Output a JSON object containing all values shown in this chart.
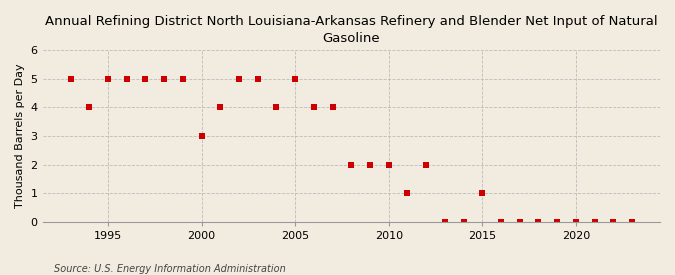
{
  "title": "Annual Refining District North Louisiana-Arkansas Refinery and Blender Net Input of Natural\nGasoline",
  "ylabel": "Thousand Barrels per Day",
  "source": "Source: U.S. Energy Information Administration",
  "background_color": "#f2ece0",
  "years": [
    1993,
    1994,
    1995,
    1996,
    1997,
    1998,
    1999,
    2000,
    2001,
    2002,
    2003,
    2004,
    2005,
    2006,
    2007,
    2008,
    2009,
    2010,
    2011,
    2012,
    2013,
    2014,
    2015,
    2016,
    2017,
    2018,
    2019,
    2020,
    2021,
    2022,
    2023
  ],
  "values": [
    5,
    4,
    5,
    5,
    5,
    5,
    5,
    3,
    4,
    5,
    5,
    4,
    5,
    4,
    4,
    2,
    2,
    2,
    1,
    2,
    0,
    0,
    1,
    0,
    0,
    0,
    0,
    0,
    0,
    0,
    0
  ],
  "marker_color": "#cc0000",
  "marker_size": 4,
  "xlim": [
    1991.5,
    2024.5
  ],
  "ylim": [
    0,
    6
  ],
  "yticks": [
    0,
    1,
    2,
    3,
    4,
    5,
    6
  ],
  "xticks": [
    1995,
    2000,
    2005,
    2010,
    2015,
    2020
  ],
  "grid_color": "#bbbbbb",
  "title_fontsize": 9.5,
  "label_fontsize": 8,
  "tick_fontsize": 8,
  "source_fontsize": 7
}
